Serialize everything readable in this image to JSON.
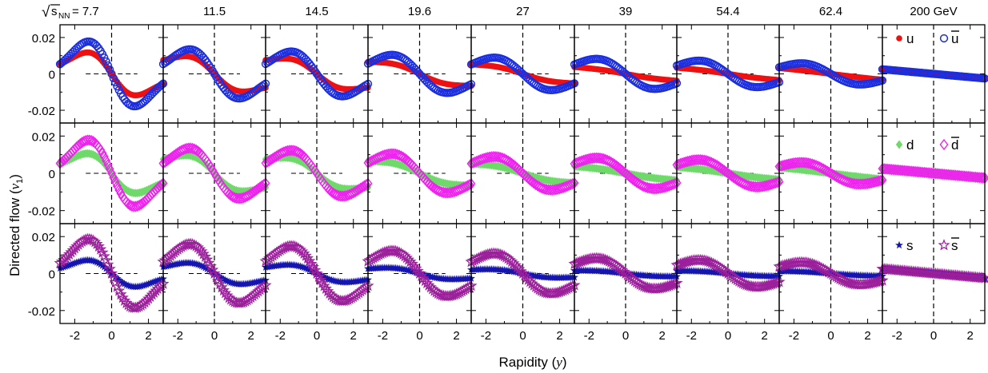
{
  "energy_label": {
    "sqrt_symbol": "√",
    "s_text": "s",
    "subscript": "NN",
    "equals": "= 7.7"
  },
  "energies": [
    "7.7",
    "11.5",
    "14.5",
    "19.6",
    "27",
    "39",
    "54.4",
    "62.4",
    "200 GeV"
  ],
  "ylabel": "Directed flow (v1)",
  "ylabel_main": "Directed flow (",
  "ylabel_var": "v",
  "ylabel_sub": "1",
  "ylabel_close": ")",
  "xlabel": "Rapidity (y)",
  "xlabel_main": "Rapidity (",
  "xlabel_var": "y",
  "xlabel_close": ")",
  "ytick_labels": [
    "0.02",
    "0",
    "-0.02"
  ],
  "xtick_labels": [
    "-2",
    "0",
    "2"
  ],
  "legend_rows": [
    {
      "quark": "u",
      "anti": "u",
      "quark_color": "#ee1111",
      "anti_color": "#1a2ee0",
      "quark_marker": "filled-circle",
      "anti_marker": "open-circle"
    },
    {
      "quark": "d",
      "anti": "d",
      "quark_color": "#6fd96a",
      "anti_color": "#ee22ee",
      "quark_marker": "filled-diamond",
      "anti_marker": "open-diamond"
    },
    {
      "quark": "s",
      "anti": "s",
      "quark_color": "#1515b0",
      "anti_color": "#9b1f9b",
      "quark_marker": "filled-star",
      "anti_marker": "open-star"
    }
  ],
  "colors": {
    "frame": "#000000",
    "dashed": "#000000"
  },
  "chart_data": {
    "type": "scatter",
    "layout": "grid 3 rows (u/ubar, d/dbar, s/sbar) x 9 columns (collision energies)",
    "xlabel": "Rapidity (y)",
    "ylabel": "Directed flow (v1)",
    "xlim": [
      -2.8,
      2.8
    ],
    "ylim": [
      -0.027,
      0.027
    ],
    "xticks": [
      -2,
      0,
      2
    ],
    "yticks": [
      -0.02,
      0,
      0.02
    ],
    "reference_lines": [
      "vertical dashed line at y = 0",
      "horizontal dashed line at v1 = 0"
    ],
    "columns": [
      "7.7",
      "11.5",
      "14.5",
      "19.6",
      "27",
      "39",
      "54.4",
      "62.4",
      "200 GeV"
    ],
    "series_model": "v1(y) = a*y*exp(-y^2/(2*w^2)) + b*y ; 57 points from y=-2.8 to 2.8 in steps of 0.1",
    "u": {
      "a": [
        -0.0142,
        -0.0088,
        -0.0066,
        -0.0032,
        -0.0019,
        -0.0007,
        -0.0005,
        -0.0002,
        0.0
      ],
      "b": [
        -0.0008,
        -0.0017,
        -0.0018,
        -0.0018,
        -0.0015,
        -0.0012,
        -0.0011,
        -0.0011,
        -0.0009
      ],
      "w": [
        1.25,
        1.35,
        1.4,
        1.5,
        1.55,
        1.6,
        1.6,
        1.6,
        1.6
      ]
    },
    "ubar": {
      "a": [
        -0.0235,
        -0.0165,
        -0.0145,
        -0.0115,
        -0.0095,
        -0.0085,
        -0.0075,
        -0.006,
        0.0
      ],
      "b": [
        0.0,
        0.0,
        0.0,
        0.0,
        0.0,
        0.0,
        0.0,
        0.0,
        -0.0009
      ],
      "w": [
        1.25,
        1.35,
        1.4,
        1.5,
        1.55,
        1.6,
        1.6,
        1.6,
        1.6
      ]
    },
    "d": {
      "a": [
        -0.0127,
        -0.0088,
        -0.0066,
        -0.0032,
        -0.0019,
        -0.0007,
        -0.0005,
        -0.0002,
        0.0
      ],
      "b": [
        -0.0008,
        -0.0017,
        -0.0018,
        -0.0018,
        -0.0015,
        -0.0012,
        -0.0011,
        -0.0011,
        -0.0009
      ],
      "w": [
        1.25,
        1.35,
        1.4,
        1.5,
        1.55,
        1.6,
        1.6,
        1.6,
        1.6
      ]
    },
    "dbar": {
      "a": [
        -0.0235,
        -0.0165,
        -0.0145,
        -0.0115,
        -0.0095,
        -0.0085,
        -0.0075,
        -0.006,
        0.0
      ],
      "b": [
        0.0,
        0.0,
        0.0,
        0.0,
        0.0,
        0.0,
        0.0,
        0.0,
        -0.0009
      ],
      "w": [
        1.25,
        1.35,
        1.4,
        1.5,
        1.55,
        1.6,
        1.6,
        1.6,
        1.6
      ]
    },
    "s": {
      "a": [
        -0.009,
        -0.006,
        -0.0045,
        -0.0025,
        -0.0017,
        -0.0008,
        -0.0006,
        -0.0004,
        0.0
      ],
      "b": [
        -0.0003,
        -0.0006,
        -0.0006,
        -0.0005,
        -0.0004,
        -0.0004,
        -0.0004,
        -0.0004,
        -0.0009
      ],
      "w": [
        1.25,
        1.35,
        1.4,
        1.5,
        1.55,
        1.6,
        1.6,
        1.6,
        1.6
      ]
    },
    "sbar": {
      "a": [
        -0.0245,
        -0.0195,
        -0.0175,
        -0.0135,
        -0.0115,
        -0.0085,
        -0.0075,
        -0.0062,
        0.0
      ],
      "b": [
        0.0,
        0.0,
        0.0,
        0.0,
        0.0,
        0.0,
        0.0,
        0.0,
        -0.0009
      ],
      "w": [
        1.25,
        1.35,
        1.4,
        1.5,
        1.55,
        1.6,
        1.6,
        1.6,
        1.6
      ]
    }
  }
}
